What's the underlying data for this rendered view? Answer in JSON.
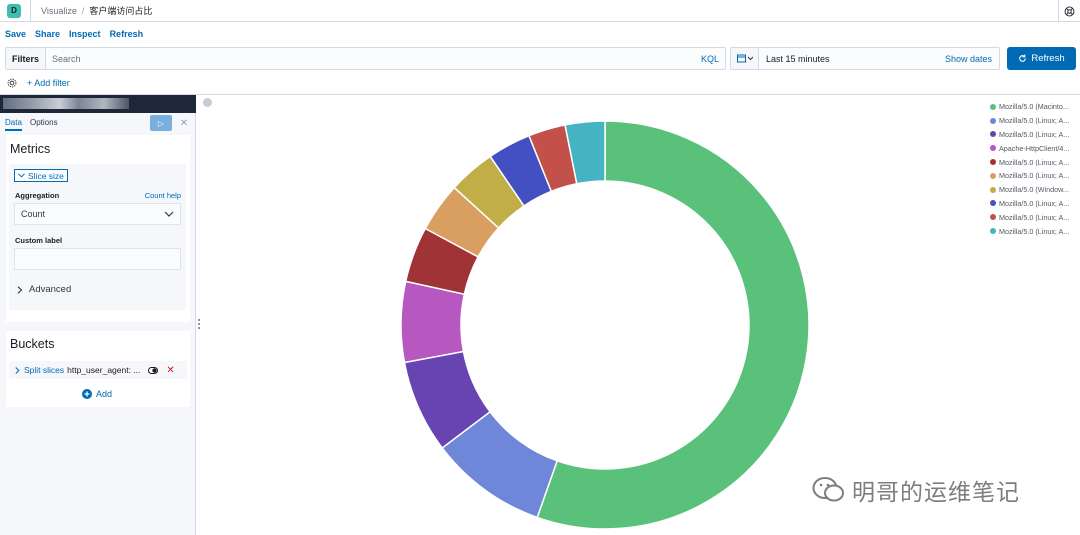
{
  "app": {
    "logo_letter": "D",
    "breadcrumb_app": "Visualize",
    "breadcrumb_sep": "/",
    "breadcrumb_page": "客户端访问占比"
  },
  "menu": {
    "save": "Save",
    "share": "Share",
    "inspect": "Inspect",
    "refresh": "Refresh"
  },
  "query": {
    "filters_label": "Filters",
    "search_placeholder": "Search",
    "language": "KQL"
  },
  "time": {
    "range": "Last 15 minutes",
    "show_dates": "Show dates",
    "refresh_label": "Refresh"
  },
  "filter_row": {
    "add_filter": "+ Add filter"
  },
  "editor": {
    "tabs": {
      "data": "Data",
      "options": "Options"
    },
    "apply_icon": "▷",
    "discard_icon": "✕",
    "metrics": {
      "title": "Metrics",
      "slice_size": "Slice size",
      "aggregation_label": "Aggregation",
      "help_link": "Count help",
      "aggregation_value": "Count",
      "custom_label": "Custom label",
      "custom_value": "",
      "advanced": "Advanced"
    },
    "buckets": {
      "title": "Buckets",
      "split_label": "Split slices",
      "split_field": "http_user_agent: ...",
      "add": "Add"
    }
  },
  "chart_data": {
    "type": "pie",
    "donut": true,
    "legend_position": "right",
    "labels": [
      "Mozilla/5.0 (Macinto...",
      "Mozilla/5.0 (Linux; A...",
      "Mozilla/5.0 (Linux; A...",
      "Apache-HttpClient/4...",
      "Mozilla/5.0 (Linux; A...",
      "Mozilla/5.0 (Linux; A...",
      "Mozilla/5.0 (Window...",
      "Mozilla/5.0 (Linux; A...",
      "Mozilla/5.0 (Linux; A...",
      "Mozilla/5.0 (Linux; A..."
    ],
    "values": [
      56.5,
      9.5,
      7.5,
      6.5,
      4.5,
      4.0,
      3.8,
      3.5,
      3.0,
      3.2
    ],
    "colors": [
      "#59c17a",
      "#6f87d8",
      "#6744b2",
      "#b757c0",
      "#a03336",
      "#d99f61",
      "#c2ae47",
      "#4350c2",
      "#c4504a",
      "#46b3c4"
    ]
  },
  "watermark": "明哥的运维笔记"
}
